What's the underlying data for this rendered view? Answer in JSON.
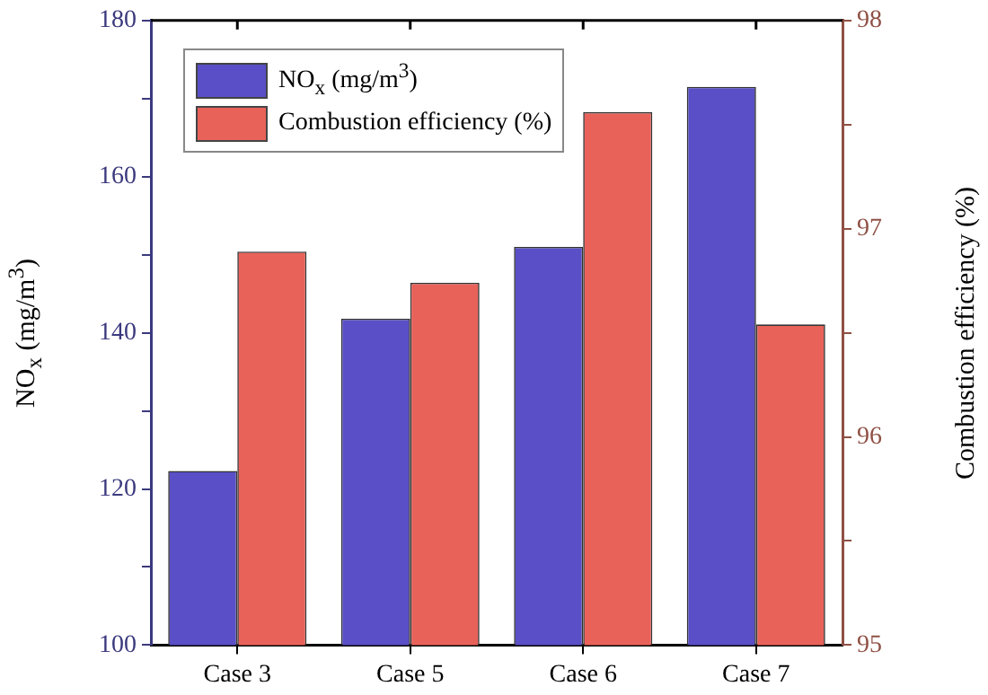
{
  "chart_data": {
    "type": "bar",
    "categories": [
      "Case 3",
      "Case 5",
      "Case 6",
      "Case 7"
    ],
    "series": [
      {
        "name": "NO$_{x}$ (mg/m$^{3}$)",
        "color": "#5a4fc6",
        "values": [
          122.3,
          141.8,
          151.0,
          171.5
        ]
      },
      {
        "name": "Combustion efficiency (%)",
        "color": "#e8625a",
        "axis": "y2",
        "values": [
          96.89,
          96.74,
          97.56,
          96.54
        ]
      }
    ],
    "ylabel": "NO$_{x}$ (mg/m$^{3}$)",
    "y2label": "Combustion efficiency (%)",
    "ylim": [
      100,
      180
    ],
    "yticks": [
      100,
      {
        "value": 110,
        "label": null
      },
      120,
      {
        "value": 130,
        "label": null
      },
      140,
      {
        "value": 150,
        "label": null
      },
      160,
      {
        "value": 170,
        "label": null
      },
      180
    ],
    "y2lim": [
      95,
      98
    ],
    "y2ticks": [
      95,
      {
        "value": 95.5,
        "label": null
      },
      96,
      {
        "value": 96.5,
        "label": null
      },
      97,
      {
        "value": 97.5,
        "label": null
      },
      98
    ],
    "grid": false,
    "legend": "top left"
  }
}
